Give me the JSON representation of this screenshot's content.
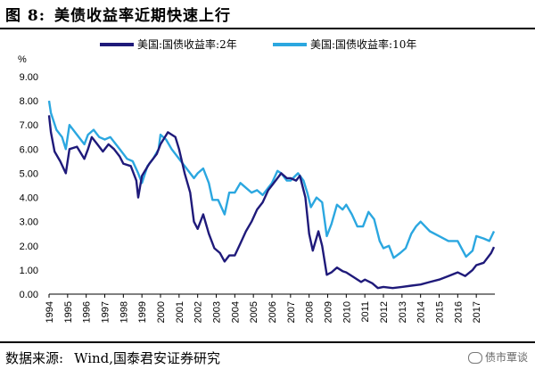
{
  "figure": {
    "label": "图 8:",
    "title": "美债收益率近期快速上行"
  },
  "source": {
    "label": "数据来源:",
    "text": "Wind,国泰君安证券研究"
  },
  "watermark": {
    "icon": "wechat-icon",
    "text": "债市覃谈"
  },
  "colors": {
    "series_2y": "#1f1a7a",
    "series_10y": "#2ba7e0"
  },
  "chart_data": {
    "type": "line",
    "title": "",
    "unit_label": "%",
    "ylim": [
      0,
      9
    ],
    "yticks": [
      "0.00",
      "1.00",
      "2.00",
      "3.00",
      "4.00",
      "5.00",
      "6.00",
      "7.00",
      "8.00",
      "9.00"
    ],
    "xlim": [
      1994,
      2018
    ],
    "xticks": [
      "1994",
      "1995",
      "1996",
      "1997",
      "1998",
      "1999",
      "2000",
      "2001",
      "2002",
      "2003",
      "2004",
      "2005",
      "2006",
      "2007",
      "2008",
      "2009",
      "2010",
      "2011",
      "2012",
      "2013",
      "2014",
      "2015",
      "2016",
      "2017"
    ],
    "legend_position": "top",
    "grid": false,
    "series": [
      {
        "name": "美国:国债收益率:2年",
        "x": [
          1994.0,
          1994.1,
          1994.3,
          1994.6,
          1994.9,
          1995.1,
          1995.5,
          1995.9,
          1996.1,
          1996.3,
          1996.6,
          1996.9,
          1997.2,
          1997.5,
          1997.8,
          1998.0,
          1998.4,
          1998.7,
          1998.8,
          1999.0,
          1999.4,
          1999.8,
          2000.0,
          2000.4,
          2000.8,
          2001.0,
          2001.3,
          2001.6,
          2001.8,
          2002.0,
          2002.3,
          2002.6,
          2002.9,
          2003.2,
          2003.45,
          2003.7,
          2004.0,
          2004.3,
          2004.6,
          2004.9,
          2005.2,
          2005.5,
          2005.8,
          2006.0,
          2006.3,
          2006.5,
          2006.8,
          2007.0,
          2007.3,
          2007.5,
          2007.8,
          2008.0,
          2008.2,
          2008.5,
          2008.7,
          2008.95,
          2009.2,
          2009.5,
          2009.8,
          2010.0,
          2010.4,
          2010.8,
          2011.0,
          2011.4,
          2011.7,
          2012.0,
          2012.5,
          2013.0,
          2013.5,
          2014.0,
          2014.5,
          2015.0,
          2015.5,
          2016.0,
          2016.4,
          2016.8,
          2017.0,
          2017.4,
          2017.8,
          2017.95
        ],
        "y": [
          7.4,
          6.7,
          5.9,
          5.5,
          5.0,
          6.0,
          6.1,
          5.6,
          6.0,
          6.5,
          6.2,
          5.9,
          6.2,
          6.0,
          5.7,
          5.4,
          5.3,
          4.7,
          4.0,
          4.9,
          5.4,
          5.8,
          6.2,
          6.7,
          6.5,
          6.0,
          5.0,
          4.2,
          3.0,
          2.7,
          3.3,
          2.5,
          1.9,
          1.7,
          1.35,
          1.6,
          1.6,
          2.1,
          2.6,
          3.0,
          3.5,
          3.8,
          4.3,
          4.5,
          4.8,
          5.0,
          4.8,
          4.8,
          4.7,
          4.9,
          4.0,
          2.5,
          1.8,
          2.6,
          2.0,
          0.8,
          0.9,
          1.1,
          0.95,
          0.9,
          0.7,
          0.5,
          0.6,
          0.45,
          0.25,
          0.3,
          0.25,
          0.3,
          0.35,
          0.4,
          0.5,
          0.6,
          0.75,
          0.9,
          0.75,
          1.0,
          1.2,
          1.3,
          1.7,
          1.95
        ]
      },
      {
        "name": "美国:国债收益率:10年",
        "x": [
          1994.0,
          1994.1,
          1994.4,
          1994.7,
          1994.9,
          1995.1,
          1995.5,
          1995.9,
          1996.1,
          1996.4,
          1996.7,
          1997.0,
          1997.3,
          1997.6,
          1997.9,
          1998.2,
          1998.5,
          1998.8,
          1999.0,
          1999.3,
          1999.6,
          1999.9,
          2000.0,
          2000.3,
          2000.6,
          2000.9,
          2001.1,
          2001.4,
          2001.8,
          2002.0,
          2002.3,
          2002.6,
          2002.8,
          2003.1,
          2003.45,
          2003.7,
          2004.0,
          2004.3,
          2004.6,
          2004.9,
          2005.2,
          2005.5,
          2005.8,
          2006.0,
          2006.3,
          2006.5,
          2006.8,
          2007.0,
          2007.4,
          2007.7,
          2007.9,
          2008.1,
          2008.4,
          2008.7,
          2008.95,
          2009.2,
          2009.5,
          2009.8,
          2010.0,
          2010.3,
          2010.6,
          2010.9,
          2011.2,
          2011.5,
          2011.8,
          2012.0,
          2012.3,
          2012.55,
          2012.9,
          2013.2,
          2013.5,
          2013.75,
          2014.0,
          2014.5,
          2015.0,
          2015.5,
          2016.0,
          2016.45,
          2016.8,
          2017.0,
          2017.4,
          2017.7,
          2017.95
        ],
        "y": [
          8.0,
          7.5,
          6.8,
          6.5,
          6.0,
          7.0,
          6.6,
          6.2,
          6.6,
          6.8,
          6.5,
          6.4,
          6.5,
          6.2,
          5.9,
          5.6,
          5.5,
          5.0,
          4.6,
          5.3,
          5.6,
          6.0,
          6.6,
          6.4,
          6.0,
          5.7,
          5.5,
          5.2,
          4.8,
          5.0,
          5.2,
          4.6,
          3.9,
          3.9,
          3.3,
          4.2,
          4.2,
          4.6,
          4.4,
          4.2,
          4.3,
          4.1,
          4.4,
          4.6,
          5.1,
          5.0,
          4.7,
          4.7,
          5.0,
          4.7,
          4.2,
          3.6,
          4.0,
          3.8,
          2.4,
          2.9,
          3.7,
          3.5,
          3.7,
          3.3,
          2.8,
          2.8,
          3.4,
          3.1,
          2.2,
          1.9,
          2.0,
          1.5,
          1.7,
          1.9,
          2.5,
          2.8,
          3.0,
          2.6,
          2.4,
          2.2,
          2.2,
          1.55,
          1.8,
          2.4,
          2.3,
          2.2,
          2.6
        ]
      }
    ]
  }
}
